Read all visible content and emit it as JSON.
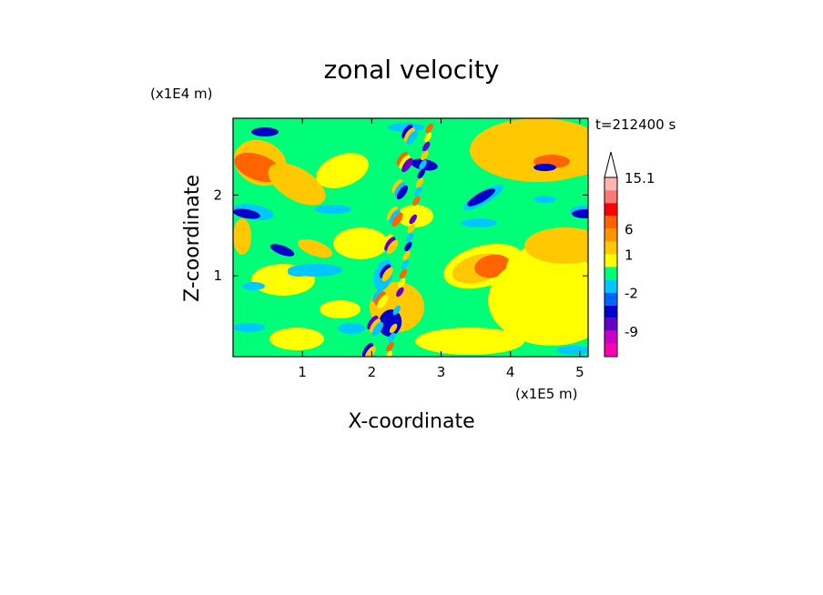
{
  "chart_data": {
    "type": "heatmap",
    "title": "zonal velocity",
    "xlabel": "X-coordinate",
    "ylabel": "Z-coordinate",
    "x_unit": "(x1E5 m)",
    "y_unit": "(x1E4 m)",
    "time_label": "t=212400 s",
    "xlim": [
      0,
      5.12
    ],
    "ylim": [
      0,
      2.95
    ],
    "x_ticks": [
      "1",
      "2",
      "3",
      "4",
      "5"
    ],
    "y_ticks": [
      "1",
      "2"
    ],
    "colorbar": {
      "levels": [
        {
          "color": "#ff00b4",
          "label": ""
        },
        {
          "color": "#c800c8",
          "label": "-9"
        },
        {
          "color": "#6400c8",
          "label": ""
        },
        {
          "color": "#0000c8",
          "label": ""
        },
        {
          "color": "#0064ff",
          "label": "-2"
        },
        {
          "color": "#00c8ff",
          "label": ""
        },
        {
          "color": "#00ff78",
          "label": ""
        },
        {
          "color": "#ffff00",
          "label": "1"
        },
        {
          "color": "#ffc800",
          "label": ""
        },
        {
          "color": "#ff9600",
          "label": "6"
        },
        {
          "color": "#ff6400",
          "label": ""
        },
        {
          "color": "#ff0000",
          "label": ""
        },
        {
          "color": "#ff7878",
          "label": ""
        },
        {
          "color": "#ffb4b4",
          "label": "15.1"
        }
      ],
      "extend": "max"
    },
    "grid": false
  }
}
